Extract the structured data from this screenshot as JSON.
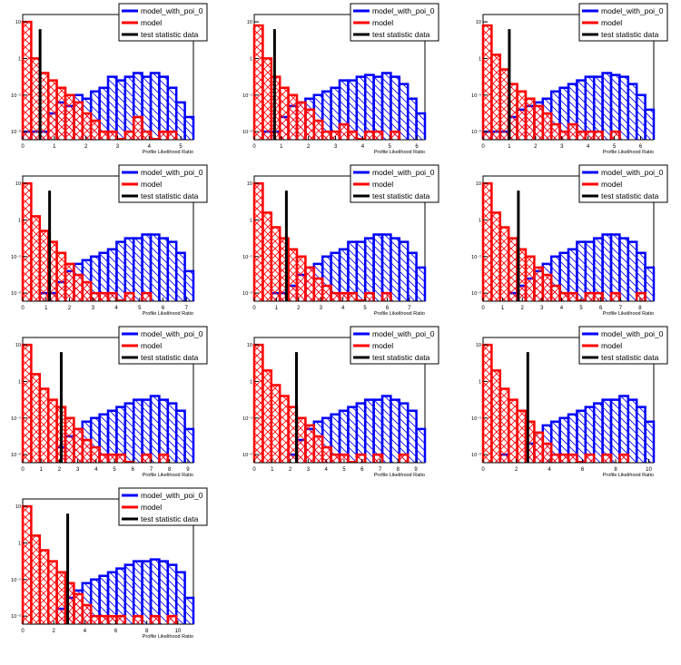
{
  "chart_data": {
    "type": "bar",
    "description_of_values": "log10 of normalized density per bin (20 equal bins from 0 to x_max); null = empty bin",
    "legend": [
      "model_with_poi_0",
      "model",
      "test statistic data"
    ],
    "legend_placement": "top-right",
    "xlabel": "Profile Likelihood Ratio",
    "y_scale": "log",
    "y_tick_labels": [
      "10",
      "1",
      "10⁻¹",
      "10⁻²"
    ],
    "y_tick_values": [
      10,
      1,
      0.1,
      0.01
    ],
    "ylim_log10": [
      -2.22,
      1.2
    ],
    "colors": {
      "model_with_poi_0": "#0000ff",
      "model": "#ff0000",
      "test_statistic_data": "#000000"
    },
    "panels": [
      {
        "x_max": 5.4,
        "x_ticks": [
          0,
          1,
          2,
          3,
          4,
          5
        ],
        "test_statistic": 0.55,
        "model_with_poi_0": [
          -2,
          -2,
          -2,
          -1.5,
          -1.2,
          -1.3,
          -1.0,
          -1.1,
          -0.9,
          -0.8,
          -0.5,
          -0.6,
          -0.5,
          -0.4,
          -0.5,
          -0.4,
          -0.5,
          -0.8,
          -1.2,
          -1.6
        ],
        "model": [
          1.0,
          0.0,
          -0.4,
          -0.6,
          -0.8,
          -1.0,
          -1.2,
          -1.5,
          -1.7,
          -2,
          -2,
          -2.2,
          -2,
          -1.6,
          -2,
          -2.2,
          -2,
          -2,
          null,
          null
        ]
      },
      {
        "x_max": 6.3,
        "x_ticks": [
          0,
          1,
          2,
          3,
          4,
          5,
          6
        ],
        "test_statistic": 0.75,
        "model_with_poi_0": [
          null,
          -2,
          -2,
          -1.6,
          -1.3,
          -1.2,
          -1.1,
          -1.0,
          -0.9,
          -0.8,
          -0.6,
          -0.6,
          -0.5,
          -0.45,
          -0.5,
          -0.4,
          -0.5,
          -0.7,
          -1.1,
          -1.5
        ],
        "model": [
          0.9,
          0.0,
          -0.5,
          -0.8,
          -1.0,
          -1.2,
          -1.4,
          -1.7,
          -2,
          -2,
          -1.8,
          -2,
          -2.2,
          -2,
          -2,
          null,
          -2,
          null,
          null,
          null
        ]
      },
      {
        "x_max": 6.5,
        "x_ticks": [
          0,
          1,
          2,
          3,
          4,
          5,
          6
        ],
        "test_statistic": 1.0,
        "model_with_poi_0": [
          -2,
          -2,
          -2,
          -1.6,
          -1.4,
          -1.3,
          -1.2,
          -1.1,
          -0.9,
          -0.8,
          -0.7,
          -0.6,
          -0.5,
          -0.5,
          -0.4,
          -0.45,
          -0.5,
          -0.7,
          -1.0,
          -1.4
        ],
        "model": [
          0.9,
          0.1,
          -0.3,
          -0.7,
          -0.9,
          -1.1,
          -1.3,
          -1.5,
          -1.8,
          -2,
          -1.8,
          -2,
          -2,
          -2,
          null,
          -2,
          null,
          null,
          null,
          null
        ]
      },
      {
        "x_max": 7.3,
        "x_ticks": [
          0,
          1,
          2,
          3,
          4,
          5,
          6,
          7
        ],
        "test_statistic": 1.15,
        "model_with_poi_0": [
          null,
          null,
          -2,
          -2,
          -1.7,
          -1.4,
          -1.2,
          -1.1,
          -1.0,
          -0.9,
          -0.8,
          -0.6,
          -0.5,
          -0.5,
          -0.4,
          -0.4,
          -0.5,
          -0.6,
          -0.9,
          -1.4
        ],
        "model": [
          1.0,
          0.1,
          -0.3,
          -0.6,
          -0.9,
          -1.2,
          -1.5,
          -1.7,
          -2,
          -2,
          -2,
          -2.2,
          -2,
          null,
          -2,
          null,
          null,
          null,
          null,
          null
        ]
      },
      {
        "x_max": 7.7,
        "x_ticks": [
          0,
          1,
          2,
          3,
          4,
          5,
          6,
          7
        ],
        "test_statistic": 1.45,
        "model_with_poi_0": [
          null,
          null,
          -2,
          -2,
          -1.8,
          -1.5,
          -1.3,
          -1.2,
          -1.0,
          -0.9,
          -0.8,
          -0.6,
          -0.6,
          -0.5,
          -0.4,
          -0.4,
          -0.5,
          -0.6,
          -0.9,
          -1.3
        ],
        "model": [
          1.0,
          0.2,
          -0.2,
          -0.5,
          -0.8,
          -1.0,
          -1.3,
          -1.6,
          -1.8,
          -2,
          -2,
          -2,
          -2.2,
          -2,
          null,
          -2,
          null,
          null,
          null,
          null
        ]
      },
      {
        "x_max": 8.7,
        "x_ticks": [
          0,
          1,
          2,
          3,
          4,
          5,
          6,
          7,
          8
        ],
        "test_statistic": 1.8,
        "model_with_poi_0": [
          null,
          null,
          null,
          -2,
          -1.8,
          -1.6,
          -1.4,
          -1.2,
          -1.0,
          -0.9,
          -0.8,
          -0.6,
          -0.6,
          -0.5,
          -0.4,
          -0.4,
          -0.5,
          -0.6,
          -0.9,
          -1.3
        ],
        "model": [
          1.0,
          0.2,
          -0.2,
          -0.5,
          -0.8,
          -1.0,
          -1.3,
          -1.5,
          -1.8,
          -2,
          -2,
          -2.2,
          -2,
          -2,
          null,
          -2,
          null,
          null,
          -2,
          null
        ]
      },
      {
        "x_max": 9.3,
        "x_ticks": [
          0,
          1,
          2,
          3,
          4,
          5,
          6,
          7,
          8,
          9
        ],
        "test_statistic": 2.1,
        "model_with_poi_0": [
          null,
          null,
          null,
          null,
          -1.8,
          -1.5,
          -1.3,
          -1.1,
          -1.0,
          -0.9,
          -0.8,
          -0.7,
          -0.6,
          -0.5,
          -0.5,
          -0.4,
          -0.5,
          -0.6,
          -0.8,
          -1.3
        ],
        "model": [
          1.0,
          0.2,
          -0.2,
          -0.5,
          -0.7,
          -1.0,
          -1.3,
          -1.6,
          -1.8,
          -2,
          -2,
          -2,
          -2.2,
          null,
          -2,
          null,
          -2,
          null,
          null,
          null
        ]
      },
      {
        "x_max": 9.5,
        "x_ticks": [
          0,
          1,
          2,
          3,
          4,
          5,
          6,
          7,
          8,
          9
        ],
        "test_statistic": 2.35,
        "model_with_poi_0": [
          null,
          null,
          null,
          null,
          -2,
          -1.6,
          -1.3,
          -1.1,
          -1.0,
          -0.9,
          -0.8,
          -0.7,
          -0.6,
          -0.5,
          -0.5,
          -0.4,
          -0.5,
          -0.6,
          -0.8,
          -1.3
        ],
        "model": [
          1.0,
          0.3,
          -0.1,
          -0.4,
          -0.7,
          -1.0,
          -1.2,
          -1.5,
          -1.8,
          -2,
          -2,
          -2.2,
          -2,
          null,
          -2,
          null,
          null,
          -2,
          null,
          null
        ]
      },
      {
        "x_max": 10.3,
        "x_ticks": [
          0,
          2,
          4,
          6,
          8,
          10
        ],
        "test_statistic": 2.7,
        "model_with_poi_0": [
          null,
          null,
          -2,
          null,
          null,
          -1.7,
          -1.4,
          -1.2,
          -1.1,
          -1.0,
          -0.9,
          -0.8,
          -0.7,
          -0.6,
          -0.5,
          -0.5,
          -0.4,
          -0.5,
          -0.7,
          -1.1
        ],
        "model": [
          1.0,
          0.3,
          -0.2,
          -0.5,
          -0.8,
          -1.1,
          -1.4,
          -1.7,
          -2,
          -2,
          -2,
          -2.2,
          -2,
          null,
          -2,
          null,
          -2,
          null,
          null,
          null
        ]
      },
      {
        "x_max": 11.0,
        "x_ticks": [
          0,
          2,
          4,
          6,
          8,
          10
        ],
        "test_statistic": 2.9,
        "model_with_poi_0": [
          null,
          null,
          null,
          null,
          -1.8,
          -1.5,
          -1.3,
          -1.1,
          -1.0,
          -0.9,
          -0.8,
          -0.7,
          -0.6,
          -0.5,
          -0.5,
          -0.45,
          -0.5,
          -0.6,
          -0.8,
          -1.5
        ],
        "model": [
          1.0,
          0.2,
          -0.2,
          -0.5,
          -0.8,
          -1.1,
          -1.4,
          -1.7,
          -2,
          -2,
          -2,
          -2,
          null,
          -2,
          null,
          -2,
          null,
          -2,
          null,
          null
        ]
      }
    ]
  }
}
